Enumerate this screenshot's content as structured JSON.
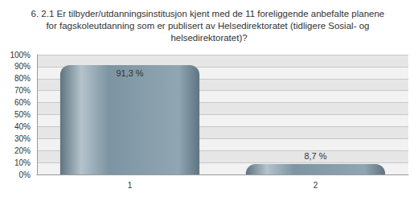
{
  "chart_data": {
    "type": "bar",
    "title": "6. 2.1 Er tilbyder/utdanningsinstitusjon kjent med de 11 foreliggende anbefalte planene for fagskoleutdanning som er publisert av Helsedirektoratet (tidligere Sosial- og helsedirektoratet)?",
    "categories": [
      "1",
      "2"
    ],
    "values": [
      91.3,
      8.7
    ],
    "value_labels": [
      "91,3 %",
      "8,7 %"
    ],
    "data_labels": true,
    "color": "#7d94a2",
    "ylim": [
      0,
      100
    ],
    "yticks": [
      {
        "value": 0,
        "label": "0%"
      },
      {
        "value": 10,
        "label": "10%"
      },
      {
        "value": 20,
        "label": "20%"
      },
      {
        "value": 30,
        "label": "30%"
      },
      {
        "value": 40,
        "label": "40%"
      },
      {
        "value": 50,
        "label": "50%"
      },
      {
        "value": 60,
        "label": "60%"
      },
      {
        "value": 70,
        "label": "70%"
      },
      {
        "value": 80,
        "label": "80%"
      },
      {
        "value": 90,
        "label": "90%"
      },
      {
        "value": 100,
        "label": "100%"
      }
    ],
    "grid": true
  }
}
